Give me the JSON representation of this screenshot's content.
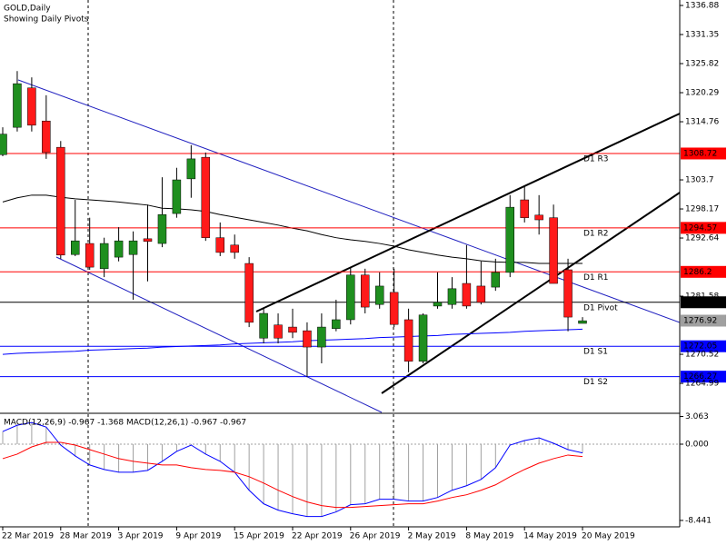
{
  "chart_data": [
    {
      "type": "candlestick",
      "title": "GOLD,Daily",
      "subtitle": "Showing Daily Pivots",
      "categories": [
        "22 Mar 2019",
        null,
        null,
        null,
        "28 Mar 2019",
        null,
        null,
        null,
        "3 Apr 2019",
        null,
        null,
        null,
        "9 Apr 2019",
        null,
        null,
        null,
        "15 Apr 2019",
        null,
        null,
        null,
        "22 Apr 2019",
        null,
        null,
        null,
        "26 Apr 2019",
        null,
        null,
        null,
        "2 May 2019",
        null,
        null,
        null,
        "8 May 2019",
        null,
        null,
        null,
        "14 May 2019",
        null,
        null,
        null,
        "20 May 2019"
      ],
      "open": [
        1308.5,
        1313.7,
        1321.2,
        1314.9,
        1309.9,
        1289.5,
        1291.6,
        1286.8,
        1289.0,
        1289.5,
        1292.5,
        1291.6,
        1297.3,
        1303.9,
        1308.0,
        1292.7,
        1291.3,
        1287.8,
        1273.6,
        1276.1,
        1275.7,
        1275.0,
        1271.9,
        1275.4,
        1277.1,
        1285.6,
        1280.0,
        1282.3,
        1277.1,
        1269.2,
        1279.7,
        1280.0,
        1284.0,
        1283.5,
        1283.3,
        1286.1,
        1299.9,
        1297.0,
        1296.5,
        1286.6,
        1276.4
      ],
      "high": [
        1313.7,
        1324.4,
        1323.2,
        1319.8,
        1311.1,
        1299.9,
        1296.5,
        1292.7,
        1294.7,
        1293.9,
        1299.0,
        1304.2,
        1306.0,
        1310.3,
        1308.9,
        1295.6,
        1293.3,
        1289.0,
        1279.2,
        1278.3,
        1279.2,
        1276.6,
        1278.3,
        1280.9,
        1287.1,
        1286.8,
        1286.1,
        1286.8,
        1279.2,
        1278.3,
        1286.1,
        1285.2,
        1291.3,
        1288.2,
        1288.7,
        1300.8,
        1302.5,
        1300.8,
        1299.0,
        1288.7,
        1277.6
      ],
      "low": [
        1308.2,
        1312.9,
        1312.9,
        1307.7,
        1288.7,
        1289.2,
        1286.6,
        1285.2,
        1288.2,
        1280.9,
        1284.4,
        1290.9,
        1296.5,
        1300.3,
        1292.1,
        1289.2,
        1288.7,
        1275.7,
        1272.6,
        1272.6,
        1273.6,
        1266.2,
        1268.8,
        1274.9,
        1276.2,
        1278.3,
        1279.2,
        1275.7,
        1267.1,
        1268.8,
        1279.2,
        1279.2,
        1279.2,
        1280.0,
        1282.6,
        1285.2,
        1295.6,
        1293.3,
        1284.0,
        1274.9,
        1276.4
      ],
      "close": [
        1312.4,
        1322.0,
        1314.1,
        1308.9,
        1289.4,
        1292.1,
        1287.1,
        1291.6,
        1292.1,
        1292.1,
        1292.0,
        1297.1,
        1303.7,
        1307.7,
        1292.7,
        1289.9,
        1289.9,
        1276.6,
        1278.3,
        1273.6,
        1274.7,
        1271.9,
        1275.7,
        1277.1,
        1285.6,
        1279.5,
        1283.5,
        1276.2,
        1269.2,
        1278.0,
        1280.4,
        1283.0,
        1279.7,
        1280.4,
        1286.1,
        1298.5,
        1296.5,
        1296.1,
        1284.0,
        1277.6,
        1276.9
      ],
      "up_color": "#1f8f1f",
      "down_color": "#ff1a1a",
      "overlays": [
        {
          "color": "#000000",
          "values": [
            1299.5,
            1300.3,
            1300.8,
            1300.8,
            1300.4,
            1300.1,
            1299.9,
            1299.7,
            1299.5,
            1299.2,
            1298.9,
            1298.3,
            1298.2,
            1298.0,
            1297.7,
            1297.1,
            1296.6,
            1296.1,
            1295.6,
            1295.1,
            1294.5,
            1294.0,
            1293.3,
            1292.7,
            1292.3,
            1292.0,
            1291.6,
            1291.1,
            1290.4,
            1289.9,
            1289.4,
            1289.0,
            1288.7,
            1288.3,
            1288.1,
            1288.0,
            1288.0,
            1287.8,
            1287.8,
            1287.8,
            1287.8
          ]
        },
        {
          "color": "#0000ff",
          "values": [
            1270.5,
            1270.7,
            1270.8,
            1270.9,
            1271.0,
            1271.1,
            1271.3,
            1271.4,
            1271.5,
            1271.6,
            1271.7,
            1271.9,
            1272.0,
            1272.1,
            1272.2,
            1272.3,
            1272.5,
            1272.6,
            1272.7,
            1272.8,
            1272.9,
            1273.1,
            1273.2,
            1273.3,
            1273.4,
            1273.5,
            1273.7,
            1273.8,
            1273.9,
            1274.0,
            1274.1,
            1274.3,
            1274.4,
            1274.5,
            1274.6,
            1274.7,
            1274.9,
            1275.0,
            1275.1,
            1275.2,
            1275.3
          ]
        }
      ],
      "pivots": [
        {
          "label": "D1 R3",
          "value": 1308.72,
          "color": "#ff0000"
        },
        {
          "label": "D1 R2",
          "value": 1294.57,
          "color": "#ff0000"
        },
        {
          "label": "D1 R1",
          "value": 1286.2,
          "color": "#ff0000"
        },
        {
          "label": "D1 Pivot",
          "value": 1280.42,
          "color": "#000000"
        },
        {
          "label": "D1 S1",
          "value": 1272.05,
          "color": "#0000ff"
        },
        {
          "label": "D1 S2",
          "value": 1266.27,
          "color": "#0000ff"
        }
      ],
      "last_price": 1276.92,
      "last_price_color": "#a0a0a0",
      "ylim": [
        1259.47,
        1337.92
      ],
      "yticks": [
        1336.88,
        1331.35,
        1325.82,
        1320.29,
        1314.76,
        1303.7,
        1298.17,
        1292.64,
        1281.58,
        1270.52,
        1264.99
      ]
    },
    {
      "type": "macd",
      "title": "MACD(12,26,9) -0.967 -1.368 MACD(12,26,1) -0.967 -0.967",
      "histogram_color": "#a0a0a0",
      "series": [
        {
          "color": "#0000ff",
          "values": [
            1.4,
            2.1,
            2.4,
            1.9,
            -0.1,
            -1.3,
            -2.3,
            -2.8,
            -3.1,
            -3.1,
            -2.9,
            -1.9,
            -0.8,
            -0.1,
            -1.1,
            -1.9,
            -3.1,
            -5.1,
            -6.6,
            -7.3,
            -7.7,
            -8.0,
            -8.0,
            -7.5,
            -6.7,
            -6.6,
            -6.1,
            -6.1,
            -6.3,
            -6.3,
            -5.9,
            -5.1,
            -4.6,
            -3.9,
            -2.6,
            -0.1,
            0.4,
            0.7,
            0.1,
            -0.6,
            -0.967
          ]
        },
        {
          "color": "#ff0000",
          "values": [
            -1.6,
            -1.1,
            -0.3,
            0.2,
            0.2,
            -0.1,
            -0.6,
            -1.1,
            -1.6,
            -1.9,
            -2.1,
            -2.3,
            -2.3,
            -2.6,
            -2.8,
            -2.9,
            -3.1,
            -3.6,
            -4.3,
            -5.1,
            -5.8,
            -6.4,
            -6.8,
            -7.0,
            -7.0,
            -6.9,
            -6.8,
            -6.7,
            -6.6,
            -6.6,
            -6.3,
            -5.9,
            -5.6,
            -5.1,
            -4.5,
            -3.6,
            -2.8,
            -2.1,
            -1.6,
            -1.2,
            -1.368
          ]
        }
      ],
      "ylim": [
        -9.15,
        3.32
      ],
      "yticks": [
        3.063,
        {
          "value": 0,
          "label": "0.000"
        },
        -8.441
      ]
    }
  ]
}
